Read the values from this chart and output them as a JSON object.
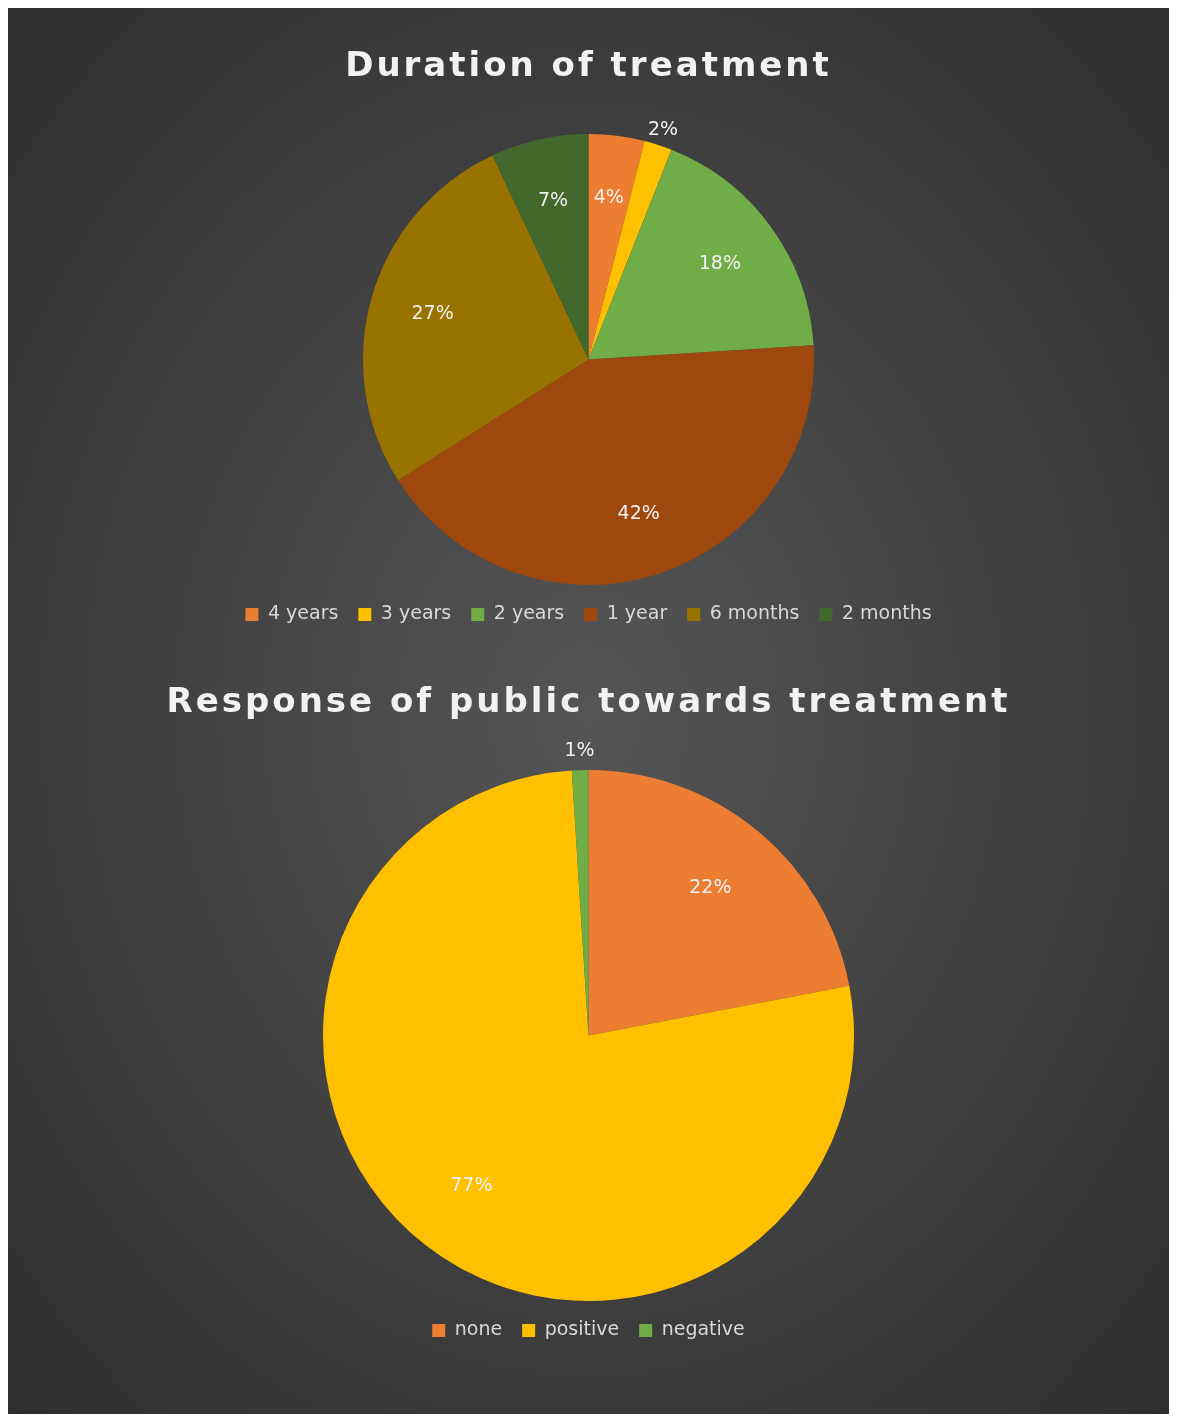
{
  "chart_data": [
    {
      "type": "pie",
      "title": "Duration of treatment",
      "categories": [
        "4 years",
        "3 years",
        "2 years",
        "1 year",
        "6 months",
        "2 months"
      ],
      "values": [
        4,
        2,
        18,
        42,
        27,
        7
      ],
      "colors": [
        "#ed7d31",
        "#ffc000",
        "#70ad47",
        "#9e480e",
        "#997300",
        "#43682b"
      ],
      "value_labels": [
        "4%",
        "2%",
        "18%",
        "42%",
        "27%",
        "7%"
      ],
      "legend": "bottom"
    },
    {
      "type": "pie",
      "title": "Response of public towards treatment",
      "categories": [
        "none",
        "positive",
        "negative"
      ],
      "values": [
        22,
        77,
        1
      ],
      "colors": [
        "#ed7d31",
        "#ffc000",
        "#70ad47"
      ],
      "value_labels": [
        "22%",
        "77%",
        "1%"
      ],
      "legend": "bottom"
    }
  ]
}
